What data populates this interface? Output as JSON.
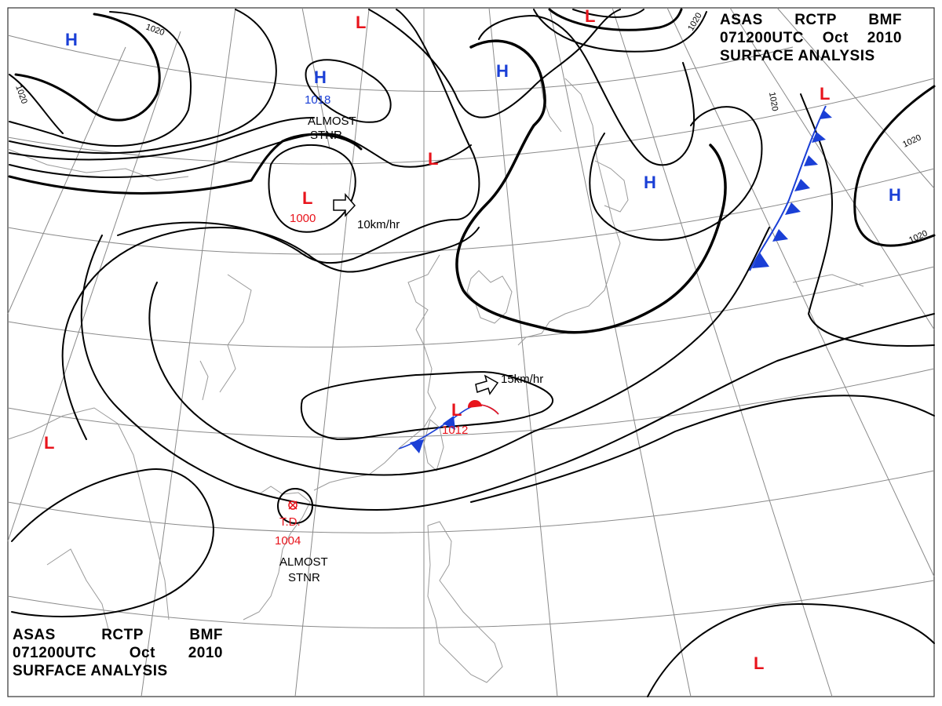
{
  "header_top": {
    "line1": [
      "ASAS",
      "RCTP",
      "BMF"
    ],
    "line2": [
      "071200UTC",
      "Oct",
      "2010"
    ],
    "line3": "SURFACE ANALYSIS"
  },
  "header_bottom": {
    "line1": [
      "ASAS",
      "RCTP",
      "BMF"
    ],
    "line2": [
      "071200UTC",
      "Oct",
      "2010"
    ],
    "line3": "SURFACE ANALYSIS"
  },
  "colors": {
    "high": "#1a3fd6",
    "low": "#e8141c",
    "cold_front": "#1a3fd6",
    "warm_front": "#e8141c",
    "isobar": "#000000",
    "grid": "#8a8a8a",
    "coast": "#9a9a9a"
  },
  "centers": {
    "high_nw": {
      "symbol": "H"
    },
    "high_mongolia": {
      "symbol": "H",
      "pressure": "1018",
      "note_line1": "ALMOST",
      "note_line2": "STNR"
    },
    "high_manchuria": {
      "symbol": "H"
    },
    "high_sakhalin": {
      "symbol": "H"
    },
    "high_pacific": {
      "symbol": "H"
    },
    "low_north_top": {
      "symbol": "L"
    },
    "low_top_right": {
      "symbol": "L"
    },
    "low_mid": {
      "symbol": "L"
    },
    "low_baikal": {
      "symbol": "L",
      "pressure": "1000",
      "motion": "10km/hr"
    },
    "low_taiwan": {
      "symbol": "L",
      "pressure": "1012",
      "motion": "15km/hr"
    },
    "low_west": {
      "symbol": "L"
    },
    "low_kamchatka": {
      "symbol": "L"
    },
    "low_southeast": {
      "symbol": "L"
    },
    "tropical_depression": {
      "symbol": "T.D.",
      "pressure": "1004",
      "note_line1": "ALMOST",
      "note_line2": "STNR"
    }
  },
  "isobar_labels": {
    "nw_top": "1020",
    "nw_left": "1020",
    "top_right": "1020",
    "kamchatka": "1020",
    "pacific_upper": "1020",
    "pacific_lower": "1020"
  }
}
